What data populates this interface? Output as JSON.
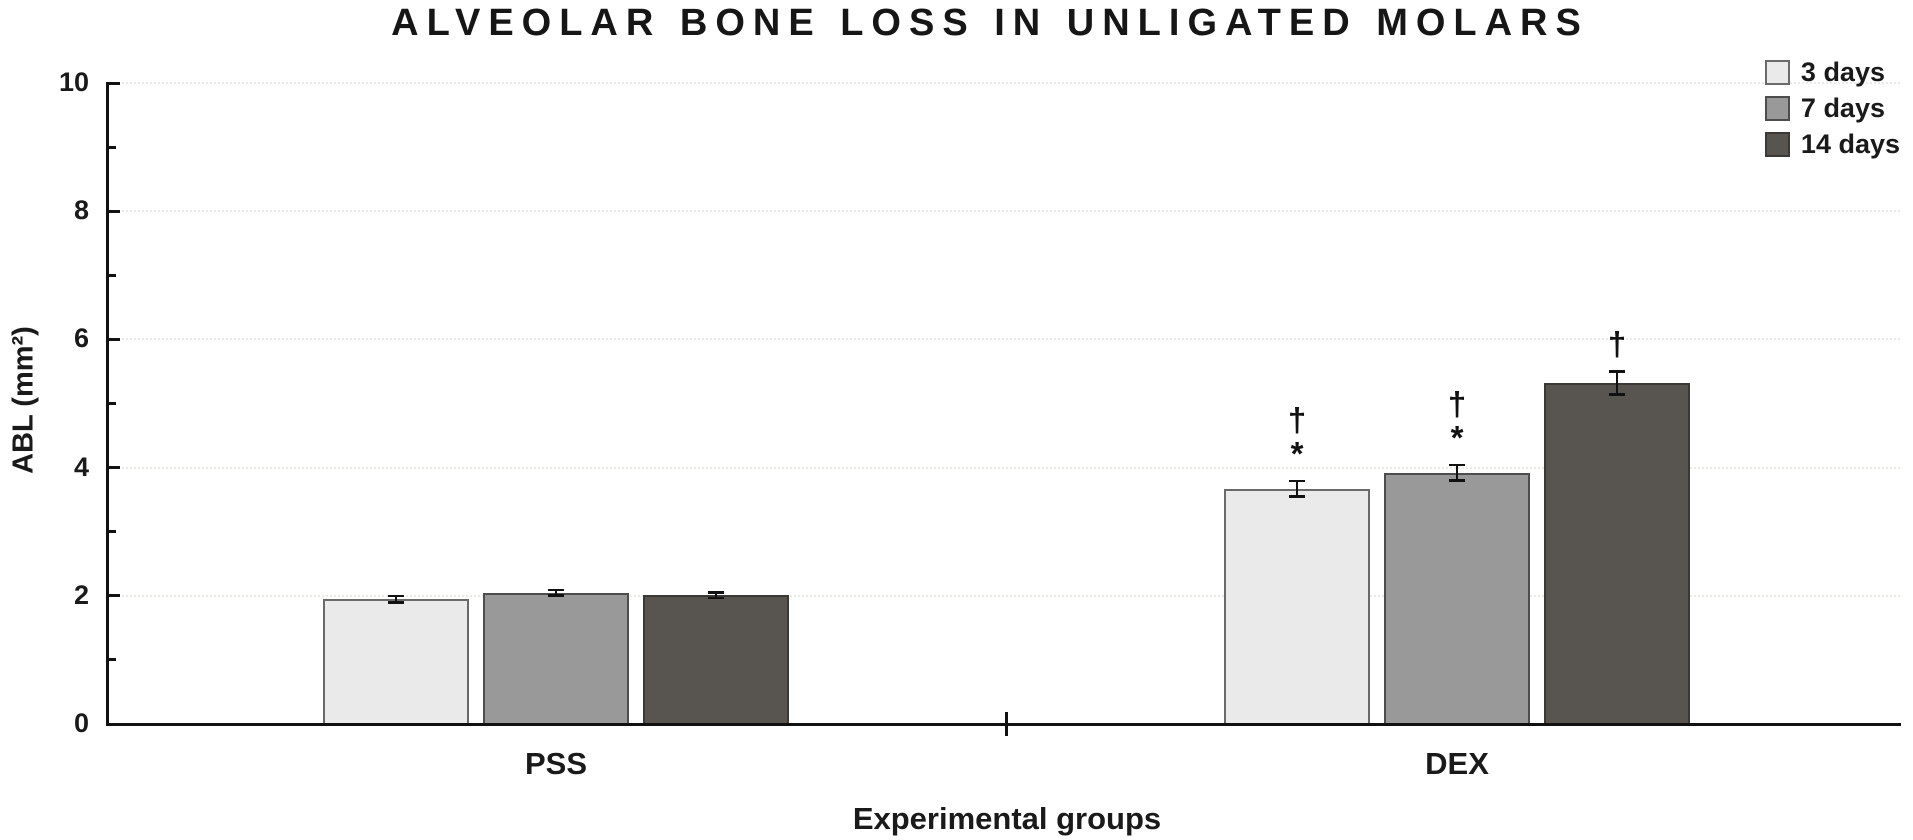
{
  "chart_data": {
    "type": "bar",
    "title": "ALVEOLAR BONE LOSS IN UNLIGATED MOLARS",
    "xlabel": "Experimental groups",
    "ylabel": "ABL (mm²)",
    "ylim": [
      0,
      10
    ],
    "yticks": [
      0,
      2,
      4,
      6,
      8,
      10
    ],
    "minor_yticks": [
      1,
      3,
      5,
      7,
      9
    ],
    "grid": "faint dotted horizontal lines at major y ticks",
    "legend_position": "top-right",
    "categories": [
      "PSS",
      "DEX"
    ],
    "series": [
      {
        "name": "3 days",
        "fill": "#eaeaea",
        "border": "#6a6a6a",
        "values": [
          1.95,
          3.67
        ],
        "errors": [
          0.05,
          0.12
        ],
        "annotations": [
          [],
          [
            "†",
            "*"
          ]
        ]
      },
      {
        "name": "7 days",
        "fill": "#999999",
        "border": "#4d4d4d",
        "values": [
          2.05,
          3.92
        ],
        "errors": [
          0.04,
          0.12
        ],
        "annotations": [
          [],
          [
            "†",
            "*"
          ]
        ]
      },
      {
        "name": "14 days",
        "fill": "#58544f",
        "border": "#3b3936",
        "values": [
          2.01,
          5.32
        ],
        "errors": [
          0.04,
          0.18
        ],
        "annotations": [
          [],
          [
            "†"
          ]
        ]
      }
    ]
  }
}
